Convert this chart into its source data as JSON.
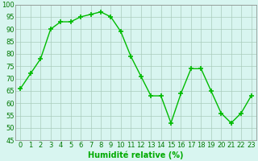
{
  "x": [
    0,
    1,
    2,
    3,
    4,
    5,
    6,
    7,
    8,
    9,
    10,
    11,
    12,
    13,
    14,
    15,
    16,
    17,
    18,
    19,
    20,
    21,
    22,
    23
  ],
  "y": [
    66,
    72,
    78,
    90,
    93,
    93,
    95,
    96,
    97,
    95,
    89,
    79,
    71,
    63,
    63,
    52,
    64,
    74,
    74,
    65,
    56,
    52,
    56,
    63
  ],
  "line_color": "#00bb00",
  "marker": "+",
  "marker_size": 4,
  "line_width": 1.0,
  "bg_color": "#d8f5f0",
  "grid_color": "#aaccbb",
  "xlabel": "Humidité relative (%)",
  "xlabel_color": "#00aa00",
  "xlabel_fontsize": 7,
  "tick_fontsize": 6,
  "ylim": [
    45,
    100
  ],
  "xlim": [
    -0.5,
    23.5
  ],
  "yticks": [
    45,
    50,
    55,
    60,
    65,
    70,
    75,
    80,
    85,
    90,
    95,
    100
  ],
  "xticks": [
    0,
    1,
    2,
    3,
    4,
    5,
    6,
    7,
    8,
    9,
    10,
    11,
    12,
    13,
    14,
    15,
    16,
    17,
    18,
    19,
    20,
    21,
    22,
    23
  ]
}
